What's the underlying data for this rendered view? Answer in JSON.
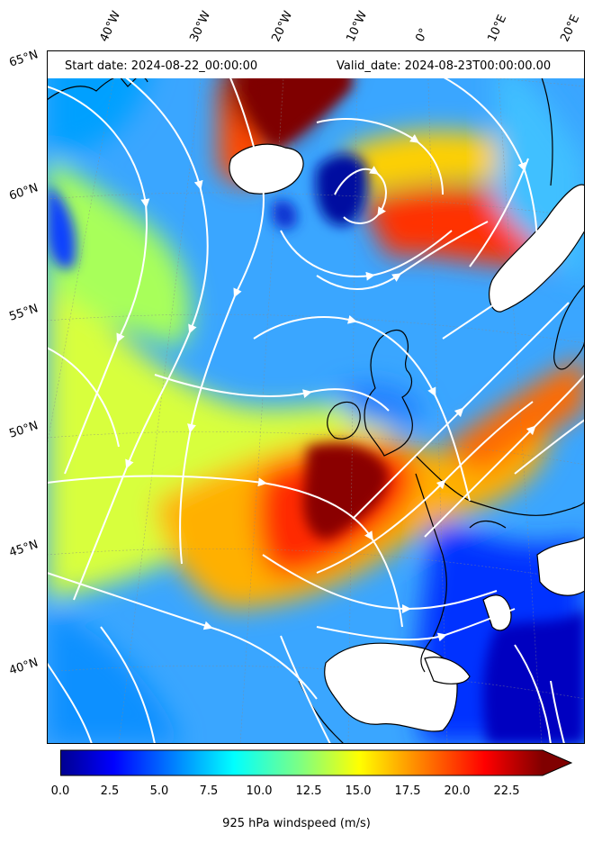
{
  "header": {
    "start_date": "Start date: 2024-08-22_00:00:00",
    "valid_date": "Valid_date: 2024-08-23T00:00:00.00"
  },
  "lon_labels": [
    "40°W",
    "30°W",
    "20°W",
    "10°W",
    "0°",
    "10°E",
    "20°E"
  ],
  "lat_labels": [
    "65°N",
    "60°N",
    "55°N",
    "50°N",
    "45°N",
    "40°N"
  ],
  "colorbar": {
    "title": "925 hPa windspeed (m/s)",
    "ticks": [
      "0.0",
      "2.5",
      "5.0",
      "7.5",
      "10.0",
      "12.5",
      "15.0",
      "17.5",
      "20.0",
      "22.5"
    ],
    "min": 0,
    "max": 25,
    "extend": "max",
    "colormap": "jet"
  },
  "colors": {
    "low": "#00008f",
    "mid": "#80ff80",
    "high": "#7f0000",
    "streamline": "#ffffff",
    "land_mask": "#ffffff",
    "coastline": "#000000"
  }
}
